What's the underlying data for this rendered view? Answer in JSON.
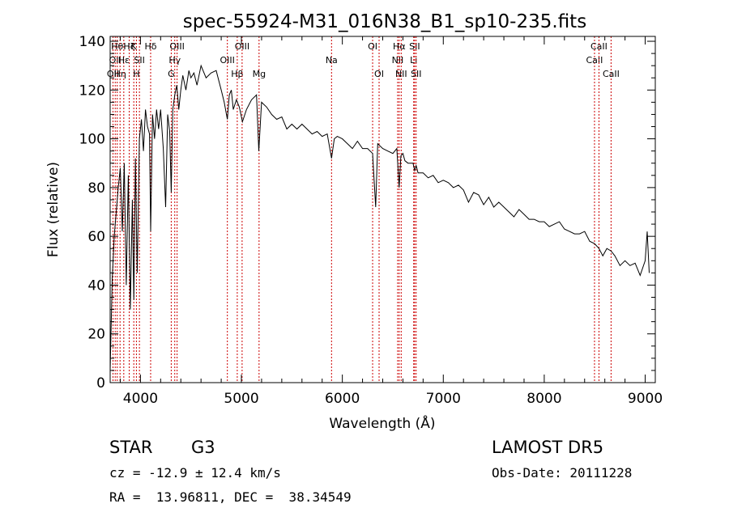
{
  "chart_data": {
    "type": "line",
    "title": "spec-55924-M31_016N38_B1_sp10-235.fits",
    "xlabel": "Wavelength (Å)",
    "ylabel": "Flux (relative)",
    "xlim": [
      3700,
      9100
    ],
    "ylim": [
      0,
      142
    ],
    "xticks": [
      4000,
      5000,
      6000,
      7000,
      8000,
      9000
    ],
    "yticks": [
      0,
      20,
      40,
      60,
      80,
      100,
      120,
      140
    ],
    "grid": false,
    "series": [
      {
        "x": [
          3700,
          3720,
          3740,
          3760,
          3780,
          3800,
          3820,
          3840,
          3860,
          3880,
          3900,
          3920,
          3934,
          3950,
          3968,
          3990,
          4010,
          4030,
          4050,
          4070,
          4090,
          4101,
          4120,
          4140,
          4160,
          4180,
          4200,
          4226,
          4250,
          4270,
          4290,
          4305,
          4320,
          4340,
          4360,
          4380,
          4400,
          4420,
          4450,
          4480,
          4500,
          4530,
          4560,
          4600,
          4650,
          4700,
          4750,
          4800,
          4830,
          4861,
          4880,
          4900,
          4920,
          4950,
          4980,
          5010,
          5050,
          5100,
          5150,
          5172,
          5200,
          5250,
          5300,
          5350,
          5400,
          5450,
          5500,
          5550,
          5600,
          5650,
          5700,
          5750,
          5800,
          5850,
          5893,
          5920,
          5950,
          6000,
          6050,
          6100,
          6150,
          6200,
          6250,
          6300,
          6330,
          6350,
          6400,
          6450,
          6500,
          6540,
          6563,
          6580,
          6600,
          6620,
          6650,
          6700,
          6716,
          6731,
          6750,
          6800,
          6850,
          6900,
          6950,
          7000,
          7050,
          7100,
          7150,
          7200,
          7250,
          7300,
          7350,
          7400,
          7450,
          7500,
          7550,
          7600,
          7650,
          7700,
          7750,
          7800,
          7850,
          7900,
          7950,
          8000,
          8050,
          8100,
          8150,
          8200,
          8250,
          8300,
          8350,
          8400,
          8450,
          8498,
          8542,
          8580,
          8620,
          8662,
          8700,
          8750,
          8800,
          8850,
          8900,
          8950,
          9000,
          9020,
          9040
        ],
        "y": [
          5,
          42,
          60,
          70,
          80,
          88,
          62,
          90,
          40,
          85,
          30,
          75,
          34,
          92,
          45,
          100,
          108,
          95,
          112,
          105,
          102,
          62,
          110,
          100,
          112,
          104,
          112,
          96,
          72,
          110,
          103,
          78,
          112,
          118,
          122,
          112,
          120,
          126,
          120,
          128,
          125,
          127,
          122,
          130,
          125,
          127,
          128,
          120,
          115,
          108,
          118,
          120,
          112,
          116,
          113,
          107,
          112,
          116,
          118,
          95,
          115,
          113,
          110,
          108,
          109,
          104,
          106,
          104,
          106,
          104,
          102,
          103,
          101,
          102,
          92,
          100,
          101,
          100,
          98,
          96,
          99,
          96,
          96,
          94,
          72,
          98,
          96,
          95,
          94,
          96,
          80,
          93,
          94,
          91,
          90,
          90,
          87,
          89,
          86,
          86,
          84,
          85,
          82,
          83,
          82,
          80,
          81,
          79,
          74,
          78,
          77,
          73,
          76,
          72,
          74,
          72,
          70,
          68,
          71,
          69,
          67,
          67,
          66,
          66,
          64,
          65,
          66,
          63,
          62,
          61,
          61,
          62,
          58,
          57,
          55,
          52,
          55,
          54,
          52,
          48,
          50,
          48,
          49,
          44,
          50,
          62,
          45
        ]
      }
    ],
    "annotations": [
      {
        "x": 3728,
        "label": "OII",
        "row": 3
      },
      {
        "x": 3750,
        "label": "OII",
        "row": 2
      },
      {
        "x": 3770,
        "label": "Hθ",
        "row": 1
      },
      {
        "x": 3798,
        "label": "Hη",
        "row": 3
      },
      {
        "x": 3835,
        "label": "Hε",
        "row": 2
      },
      {
        "x": 3889,
        "label": "Hζ",
        "row": 1
      },
      {
        "x": 3934,
        "label": "K",
        "row": 1
      },
      {
        "x": 3960,
        "label": "H",
        "row": 3
      },
      {
        "x": 3990,
        "label": "SII",
        "row": 2
      },
      {
        "x": 4101,
        "label": "Hδ",
        "row": 1
      },
      {
        "x": 4305,
        "label": "G",
        "row": 3
      },
      {
        "x": 4340,
        "label": "Hγ",
        "row": 2
      },
      {
        "x": 4363,
        "label": "OIII",
        "row": 1
      },
      {
        "x": 4861,
        "label": "OIII",
        "row": 2
      },
      {
        "x": 4959,
        "label": "Hβ",
        "row": 3
      },
      {
        "x": 5007,
        "label": "OIII",
        "row": 1
      },
      {
        "x": 5175,
        "label": "Mg",
        "row": 3
      },
      {
        "x": 5893,
        "label": "Na",
        "row": 2
      },
      {
        "x": 6300,
        "label": "OI",
        "row": 1
      },
      {
        "x": 6364,
        "label": "OI",
        "row": 3
      },
      {
        "x": 6548,
        "label": "NII",
        "row": 2
      },
      {
        "x": 6563,
        "label": "Hα",
        "row": 1
      },
      {
        "x": 6583,
        "label": "NII",
        "row": 3
      },
      {
        "x": 6707,
        "label": "Li",
        "row": 2
      },
      {
        "x": 6716,
        "label": "SII",
        "row": 1
      },
      {
        "x": 6731,
        "label": "SII",
        "row": 3
      },
      {
        "x": 8498,
        "label": "CaII",
        "row": 2
      },
      {
        "x": 8542,
        "label": "CaII",
        "row": 1
      },
      {
        "x": 8662,
        "label": "CaII",
        "row": 3
      }
    ]
  },
  "info": {
    "class": "STAR",
    "subclass": "G3",
    "survey": "LAMOST DR5",
    "cz": "cz = -12.9 ± 12.4 km/s",
    "obs_date": "Obs-Date: 20111228",
    "coords": "RA =  13.96811, DEC =  38.34549"
  }
}
